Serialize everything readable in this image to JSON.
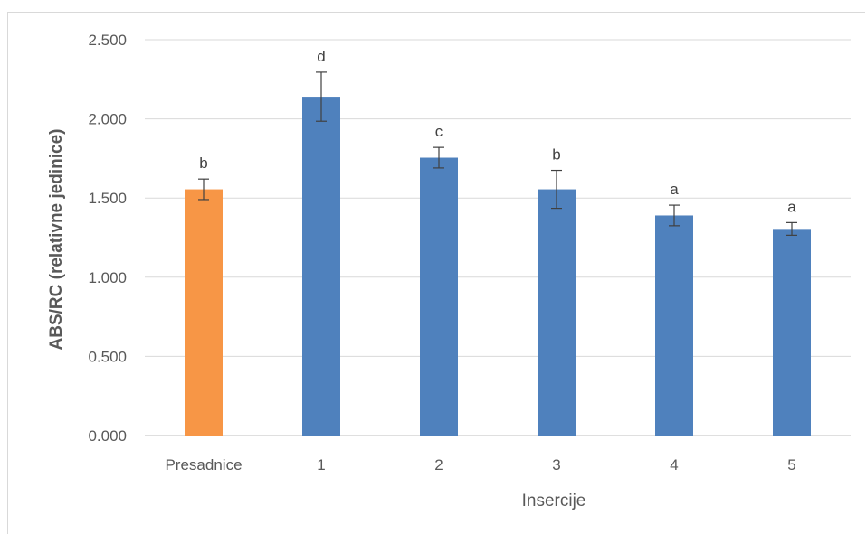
{
  "chart_data": {
    "type": "bar",
    "xlabel": "Insercije",
    "ylabel": "ABS/RC (relativne jedinice)",
    "ylim": [
      0,
      2.5
    ],
    "yticks": [
      "0.000",
      "0.500",
      "1.000",
      "1.500",
      "2.000",
      "2.500"
    ],
    "ytick_values": [
      0,
      0.5,
      1.0,
      1.5,
      2.0,
      2.5
    ],
    "categories": [
      "Presadnice",
      "1",
      "2",
      "3",
      "4",
      "5"
    ],
    "values": [
      1.555,
      2.14,
      1.755,
      1.555,
      1.39,
      1.305
    ],
    "errors": [
      0.065,
      0.155,
      0.065,
      0.12,
      0.065,
      0.04
    ],
    "annotations": [
      "b",
      "d",
      "c",
      "b",
      "a",
      "a"
    ],
    "bar_colors": [
      "#F79646",
      "#4F81BD",
      "#4F81BD",
      "#4F81BD",
      "#4F81BD",
      "#4F81BD"
    ],
    "grid": true,
    "legend": "none"
  }
}
